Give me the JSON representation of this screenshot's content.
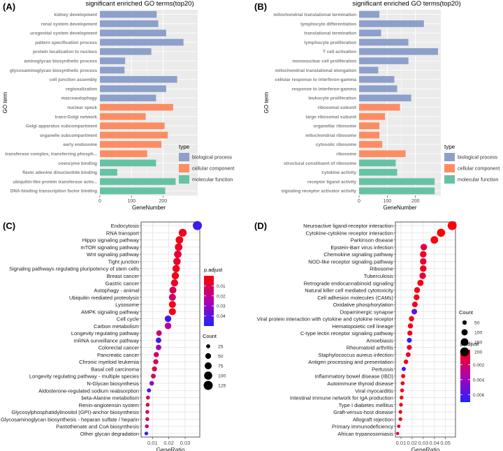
{
  "colors": {
    "panel_bg": "#ebebeb",
    "grid": "#ffffff",
    "bio": "#8da0cb",
    "cell": "#fc8d62",
    "mol": "#66c2a5",
    "bar_label": "#7f7f7f",
    "padj_high": "#ff0000",
    "padj_mid": "#b000b0",
    "padj_low": "#2222ff"
  },
  "chart_data": [
    {
      "panel": "(A)",
      "type": "bar",
      "orientation": "horizontal",
      "title": "significant enriched GO terms(top20)",
      "xlabel": "GeneNumber",
      "ylabel": "GO term",
      "xlim": [
        0,
        310
      ],
      "xticks": [
        0,
        100,
        200
      ],
      "legend": {
        "title": "type",
        "placement": "right",
        "items": [
          "biological process",
          "cellular component",
          "molecular function"
        ]
      },
      "categories": [
        "kidney development",
        "renal system development",
        "urogenital system development",
        "pattern specification process",
        "protein localization to nucleus",
        "aminoglycan biosynthetic process",
        "glycosaminoglycan biosynthetic process",
        "cell junction assembly",
        "regionalization",
        "macroautophagy",
        "nuclear speck",
        "trans-Golgi network",
        "Golgi apparatus subcompartment",
        "organelle subcompartment",
        "early endosome",
        "transferase complex, transferring phosph...",
        "coenzyme binding",
        "flavin adenine dinucleotide binding",
        "ubiquitin-like protein transferase activ...",
        "DNA-binding transcription factor binding"
      ],
      "values": [
        180,
        185,
        210,
        265,
        163,
        80,
        78,
        245,
        210,
        178,
        232,
        145,
        205,
        215,
        195,
        150,
        178,
        55,
        240,
        207
      ],
      "types": [
        "bio",
        "bio",
        "bio",
        "bio",
        "bio",
        "bio",
        "bio",
        "bio",
        "bio",
        "bio",
        "cell",
        "cell",
        "cell",
        "cell",
        "cell",
        "cell",
        "mol",
        "mol",
        "mol",
        "mol"
      ]
    },
    {
      "panel": "(B)",
      "type": "bar",
      "orientation": "horizontal",
      "title": "significant enriched GO terms(top20)",
      "xlabel": "GeneNumber",
      "ylabel": "GO term",
      "xlim": [
        0,
        290
      ],
      "xticks": [
        0,
        100,
        200
      ],
      "legend": {
        "title": "type",
        "placement": "right",
        "items": [
          "biological process",
          "cellular component",
          "molecular function"
        ]
      },
      "categories": [
        "mitochondrial translational termination",
        "lymphocyte differentiation",
        "translational termination",
        "lymphocyte proliferation",
        "T cell activation",
        "mononuclear cell proliferation",
        "mitochondrial translational elongation",
        "cellular response to interferon-gamma",
        "response to interferon-gamma",
        "leukocyte proliferation",
        "ribosomal subunit",
        "large ribosomal subunit",
        "organellar ribosome",
        "mitochondrial ribosome",
        "cytosolic ribosome",
        "ribosome",
        "structural constituent of ribosome",
        "cytokine activity",
        "receptor ligand activity",
        "signaling receptor activator activity"
      ],
      "values": [
        72,
        230,
        78,
        175,
        280,
        175,
        68,
        125,
        135,
        185,
        145,
        92,
        72,
        72,
        82,
        165,
        130,
        135,
        268,
        268
      ],
      "types": [
        "bio",
        "bio",
        "bio",
        "bio",
        "bio",
        "bio",
        "bio",
        "bio",
        "bio",
        "bio",
        "cell",
        "cell",
        "cell",
        "cell",
        "cell",
        "cell",
        "mol",
        "mol",
        "mol",
        "mol"
      ]
    },
    {
      "panel": "(C)",
      "type": "scatter",
      "subtype": "dotplot",
      "xlabel": "GeneRatio",
      "xlim": [
        0.003,
        0.039
      ],
      "xticks": [
        0.01,
        0.02,
        0.03
      ],
      "xtick_labels": [
        "0.01",
        "0.02",
        "0.03"
      ],
      "size_legend": {
        "title": "Count",
        "values": [
          25,
          50,
          75,
          100,
          125
        ]
      },
      "color_legend": {
        "title": "p.adjust",
        "range": [
          0.0,
          0.05
        ],
        "ticks": [
          0.01,
          0.02,
          0.03,
          0.04
        ],
        "tick_labels": [
          "0.01",
          "0.02",
          "0.03",
          "0.04"
        ]
      },
      "categories": [
        "Endocytosis",
        "RNA transport",
        "Hippo signaling pathway",
        "mTOR signaling pathway",
        "Wnt signaling pathway",
        "Tight junction",
        "Signaling pathways regulating pluripotency of stem cells",
        "Breast cancer",
        "Gastric cancer",
        "Autophagy - animal",
        "Ubiquitin mediated proteolysis",
        "Lysosome",
        "AMPK signaling pathway",
        "Cell cycle",
        "Carbon metabolism",
        "Longevity regulating pathway",
        "mRNA surveillance pathway",
        "Colorectal cancer",
        "Pancreatic cancer",
        "Chronic myeloid leukemia",
        "Basal cell carcinoma",
        "Longevity regulating pathway - multiple species",
        "N-Glycan biosynthesis",
        "Aldosterone-regulated sodium reabsorption",
        "beta-Alanine metabolism",
        "Renin-angiotensin system",
        "Glycosylphosphatidylinositol (GPI)-anchor biosynthesis",
        "Glycosaminoglycan biosynthesis - heparan sulfate / heparin",
        "Pantothenate and CoA biosynthesis",
        "Other glycan degradation"
      ],
      "gene_ratio": [
        0.0375,
        0.0285,
        0.0265,
        0.026,
        0.0255,
        0.025,
        0.0245,
        0.024,
        0.0235,
        0.0225,
        0.0222,
        0.0222,
        0.0222,
        0.0195,
        0.0195,
        0.014,
        0.0137,
        0.0137,
        0.0123,
        0.012,
        0.0112,
        0.0105,
        0.0095,
        0.0078,
        0.0072,
        0.007,
        0.0068,
        0.0068,
        0.0065,
        0.0062
      ],
      "counts": [
        125,
        95,
        88,
        86,
        85,
        83,
        82,
        80,
        78,
        75,
        74,
        74,
        74,
        65,
        65,
        47,
        46,
        46,
        41,
        40,
        38,
        35,
        32,
        26,
        24,
        23,
        23,
        23,
        22,
        21
      ],
      "p_adjust": [
        0.045,
        0.005,
        0.004,
        0.005,
        0.008,
        0.006,
        0.004,
        0.003,
        0.005,
        0.012,
        0.015,
        0.003,
        0.003,
        0.045,
        0.02,
        0.015,
        0.045,
        0.025,
        0.015,
        0.012,
        0.01,
        0.015,
        0.03,
        0.04,
        0.01,
        0.008,
        0.015,
        0.012,
        0.02,
        0.045
      ]
    },
    {
      "panel": "(D)",
      "type": "scatter",
      "subtype": "dotplot",
      "xlabel": "GeneRatio",
      "xlim": [
        0.005,
        0.059
      ],
      "xticks": [
        0.01,
        0.02,
        0.03,
        0.04,
        0.05
      ],
      "xtick_labels": [
        "0.01",
        "0.02",
        "0.03",
        "0.04",
        "0.05"
      ],
      "size_legend": {
        "title": "Count",
        "values": [
          50,
          100,
          150,
          200
        ]
      },
      "color_legend": {
        "title": "p.adjust",
        "range": [
          0.0,
          0.007
        ],
        "ticks": [
          0.002,
          0.004,
          0.006
        ],
        "tick_labels": [
          "0.002",
          "0.004",
          "0.006"
        ]
      },
      "categories": [
        "Neuroactive ligand-receptor interaction",
        "Cytokine-cytokine receptor interaction",
        "Parkinson disease",
        "Epstein-Barr virus infection",
        "Chemokine signaling pathway",
        "NOD-like receptor signaling pathway",
        "Ribosome",
        "Tuberculosis",
        "Retrograde endocannabinoid signaling",
        "Natural killer cell mediated cytotoxicity",
        "Cell adhesion molecules (CAMs)",
        "Oxidative phosphorylation",
        "Dopaminergic synapse",
        "Viral protein interaction with cytokine and cytokine receptor",
        "Hematopoietic cell lineage",
        "C-type lectin receptor signaling pathway",
        "Amoebiasis",
        "Rheumatoid arthritis",
        "Staphylococcus aureus infection",
        "Antigen processing and presentation",
        "Pertussis",
        "Inflammatory bowel disease (IBD)",
        "Autoimmune thyroid disease",
        "Viral myocarditis",
        "Intestinal immune network for IgA production",
        "Type I diabetes mellitus",
        "Graft-versus-host disease",
        "Allograft rejection",
        "Primary immunodeficiency",
        "African trypanosomiasis"
      ],
      "gene_ratio": [
        0.056,
        0.046,
        0.04,
        0.0305,
        0.03,
        0.03,
        0.03,
        0.0295,
        0.0275,
        0.0245,
        0.024,
        0.0225,
        0.022,
        0.0195,
        0.0185,
        0.018,
        0.0175,
        0.0175,
        0.0165,
        0.0145,
        0.0125,
        0.012,
        0.0115,
        0.011,
        0.0105,
        0.01,
        0.0095,
        0.0095,
        0.008,
        0.007
      ],
      "counts": [
        205,
        168,
        145,
        112,
        110,
        110,
        110,
        108,
        100,
        90,
        88,
        82,
        80,
        72,
        68,
        66,
        64,
        64,
        60,
        53,
        46,
        44,
        42,
        40,
        38,
        36,
        35,
        35,
        29,
        26
      ],
      "p_adjust": [
        0.0001,
        0.0001,
        0.0002,
        0.0012,
        0.0008,
        0.001,
        0.0006,
        0.0009,
        0.0003,
        0.0004,
        0.0003,
        0.0005,
        0.0055,
        0.0003,
        0.0003,
        0.0004,
        0.0065,
        0.0008,
        0.0009,
        0.0003,
        0.006,
        0.0004,
        0.0003,
        0.0004,
        0.0003,
        0.0004,
        0.0005,
        0.0005,
        0.0009,
        0.0012
      ]
    }
  ]
}
